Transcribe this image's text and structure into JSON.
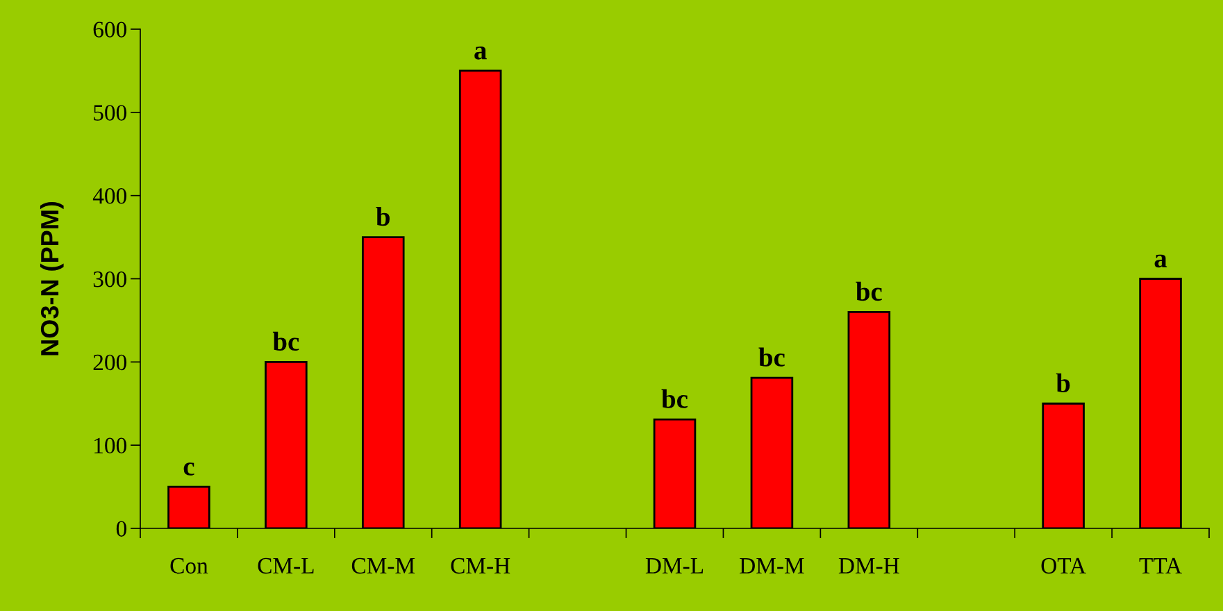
{
  "chart_data": {
    "type": "bar",
    "ylabel": "NO3-N (PPM)",
    "categories": [
      "Con",
      "CM-L",
      "CM-M",
      "CM-H",
      null,
      "DM-L",
      "DM-M",
      "DM-H",
      null,
      "OTA",
      "TTA"
    ],
    "values": [
      50,
      200,
      350,
      550,
      null,
      131,
      181,
      260,
      null,
      150,
      300
    ],
    "color": "#ff0000",
    "ylim": [
      0,
      600
    ],
    "yticks": [
      0,
      100,
      200,
      300,
      400,
      500,
      600
    ],
    "grid": false,
    "annotations": [
      {
        "text": "c",
        "x": "Con",
        "y": 50
      },
      {
        "text": "bc",
        "x": "CM-L",
        "y": 200
      },
      {
        "text": "b",
        "x": "CM-M",
        "y": 350
      },
      {
        "text": "a",
        "x": "CM-H",
        "y": 550
      },
      {
        "text": "bc",
        "x": "DM-L",
        "y": 131
      },
      {
        "text": "bc",
        "x": "DM-M",
        "y": 181
      },
      {
        "text": "bc",
        "x": "DM-H",
        "y": 260
      },
      {
        "text": "b",
        "x": "OTA",
        "y": 150
      },
      {
        "text": "a",
        "x": "TTA",
        "y": 300
      }
    ]
  }
}
